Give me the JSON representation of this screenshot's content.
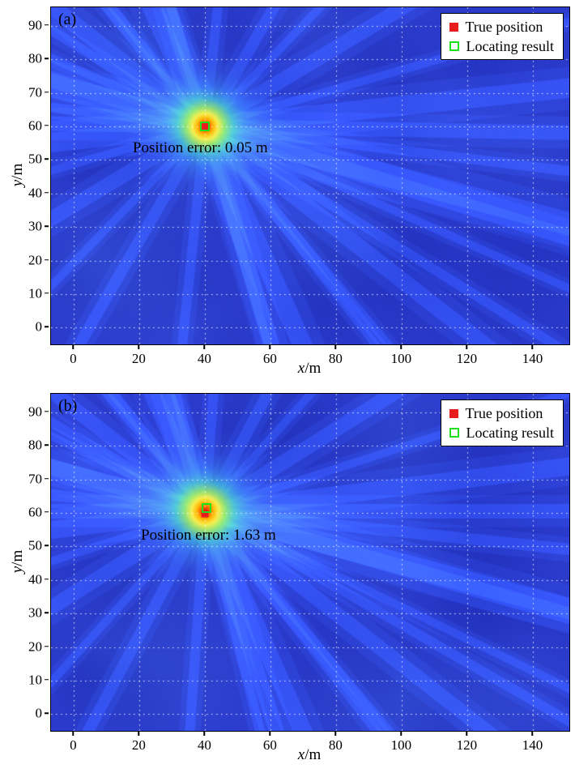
{
  "figure": {
    "background": "#ffffff",
    "text_color": "#000000"
  },
  "chart_data": [
    {
      "type": "heatmap",
      "panel_label": "(a)",
      "xlabel": "x/m",
      "xlabel_var": "x",
      "xlabel_unit": "/m",
      "ylabel": "y/m",
      "ylabel_var": "y",
      "ylabel_unit": "/m",
      "xlim": [
        -7,
        151
      ],
      "ylim": [
        -5,
        95.5
      ],
      "xticks": [
        0,
        20,
        40,
        60,
        80,
        100,
        120,
        140
      ],
      "yticks": [
        0,
        10,
        20,
        30,
        40,
        50,
        60,
        70,
        80,
        90
      ],
      "grid": true,
      "grid_style": "white-dotted",
      "colormap": "jet",
      "background_color": "#2b3bcc",
      "hotspot": {
        "x": 40,
        "y": 60
      },
      "glow_radius": 100,
      "rays": [
        {
          "deg": -74,
          "w": 12
        },
        {
          "deg": -66,
          "w": 24
        },
        {
          "deg": -50,
          "w": 10
        },
        {
          "deg": -38,
          "w": 20
        },
        {
          "deg": -24,
          "w": 10
        },
        {
          "deg": -15,
          "w": 28
        },
        {
          "deg": -7,
          "w": 12
        },
        {
          "deg": -1,
          "w": 18
        },
        {
          "deg": 6,
          "w": 24
        },
        {
          "deg": 16,
          "w": 10
        },
        {
          "deg": 31,
          "w": 18
        },
        {
          "deg": 46,
          "w": 10
        },
        {
          "deg": 60,
          "w": 14
        },
        {
          "deg": 84,
          "w": 12
        },
        {
          "deg": 107,
          "w": 18
        },
        {
          "deg": 128,
          "w": 10
        },
        {
          "deg": 148,
          "w": 12
        },
        {
          "deg": 163,
          "w": 20
        }
      ],
      "annotation": {
        "text": "Position error: 0.05 m",
        "x": 38.5,
        "y": 53.5
      },
      "position_error_m": 0.05,
      "markers": {
        "true_position": {
          "x": 40,
          "y": 60,
          "color": "#e81c1c"
        },
        "locating_result": {
          "x": 40,
          "y": 60,
          "color": "#1ee01e"
        }
      },
      "legend": {
        "position": "top-right",
        "entries": [
          {
            "label": "True position",
            "marker": "filled-square",
            "color": "#e81c1c"
          },
          {
            "label": "Locating result",
            "marker": "open-square",
            "color": "#1ee01e"
          }
        ]
      }
    },
    {
      "type": "heatmap",
      "panel_label": "(b)",
      "xlabel": "x/m",
      "xlabel_var": "x",
      "xlabel_unit": "/m",
      "ylabel": "y/m",
      "ylabel_var": "y",
      "ylabel_unit": "/m",
      "xlim": [
        -7,
        151
      ],
      "ylim": [
        -5,
        95.5
      ],
      "xticks": [
        0,
        20,
        40,
        60,
        80,
        100,
        120,
        140
      ],
      "yticks": [
        0,
        10,
        20,
        30,
        40,
        50,
        60,
        70,
        80,
        90
      ],
      "grid": true,
      "grid_style": "white-dotted",
      "colormap": "jet",
      "background_color": "#2b3bcc",
      "hotspot": {
        "x": 40,
        "y": 60.5
      },
      "glow_radius": 105,
      "rays": [
        {
          "deg": -76,
          "w": 12
        },
        {
          "deg": -66,
          "w": 22
        },
        {
          "deg": -52,
          "w": 12
        },
        {
          "deg": -38,
          "w": 18
        },
        {
          "deg": -26,
          "w": 10
        },
        {
          "deg": -15,
          "w": 26
        },
        {
          "deg": -6,
          "w": 14
        },
        {
          "deg": 0,
          "w": 18
        },
        {
          "deg": 7,
          "w": 22
        },
        {
          "deg": 18,
          "w": 10
        },
        {
          "deg": 32,
          "w": 18
        },
        {
          "deg": 48,
          "w": 10
        },
        {
          "deg": 62,
          "w": 14
        },
        {
          "deg": 86,
          "w": 12
        },
        {
          "deg": 108,
          "w": 18
        },
        {
          "deg": 130,
          "w": 10
        },
        {
          "deg": 150,
          "w": 12
        },
        {
          "deg": 164,
          "w": 20
        }
      ],
      "annotation": {
        "text": "Position error: 1.63 m",
        "x": 41,
        "y": 53.2
      },
      "position_error_m": 1.63,
      "markers": {
        "true_position": {
          "x": 40,
          "y": 59.8,
          "color": "#e81c1c"
        },
        "locating_result": {
          "x": 40.3,
          "y": 61.4,
          "color": "#1ee01e"
        }
      },
      "legend": {
        "position": "top-right",
        "entries": [
          {
            "label": "True position",
            "marker": "filled-square",
            "color": "#e81c1c"
          },
          {
            "label": "Locating result",
            "marker": "open-square",
            "color": "#1ee01e"
          }
        ]
      }
    }
  ]
}
